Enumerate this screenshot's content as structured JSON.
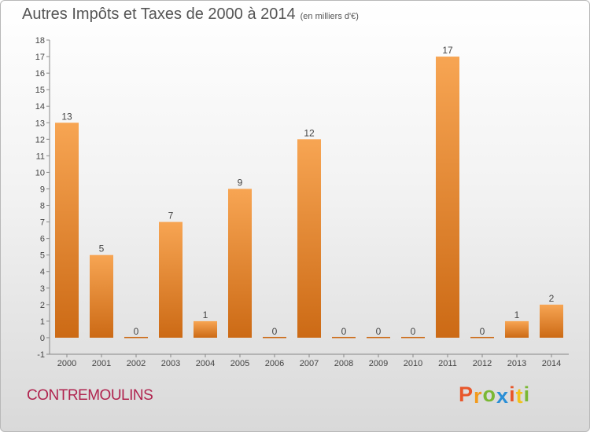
{
  "header": {
    "title": "Autres Impôts et Taxes de 2000 à 2014",
    "subtitle": "(en milliers d'€)"
  },
  "footer": {
    "commune": "CONTREMOULINS",
    "logo_letters": [
      "P",
      "r",
      "o",
      "x",
      "i",
      "t",
      "i"
    ],
    "logo_colors": [
      "#e8572b",
      "#f29a1c",
      "#7ab833",
      "#2b8fd6",
      "#e8572b",
      "#f2c21c",
      "#7ab833"
    ]
  },
  "chart_data": {
    "type": "bar",
    "title": "Autres Impôts et Taxes de 2000 à 2014",
    "categories": [
      "2000",
      "2001",
      "2002",
      "2003",
      "2004",
      "2005",
      "2006",
      "2007",
      "2008",
      "2009",
      "2010",
      "2011",
      "2012",
      "2013",
      "2014"
    ],
    "values": [
      13,
      5,
      0,
      7,
      1,
      9,
      0,
      12,
      0,
      0,
      0,
      17,
      0,
      1,
      2
    ],
    "ylim": [
      -1,
      18
    ],
    "yticks": [
      -1,
      0,
      1,
      2,
      3,
      4,
      5,
      6,
      7,
      8,
      9,
      10,
      11,
      12,
      13,
      14,
      15,
      16,
      17,
      18
    ],
    "grid": false,
    "bar_color_top": "#f7a553",
    "bar_color_bottom": "#cc6a15"
  }
}
